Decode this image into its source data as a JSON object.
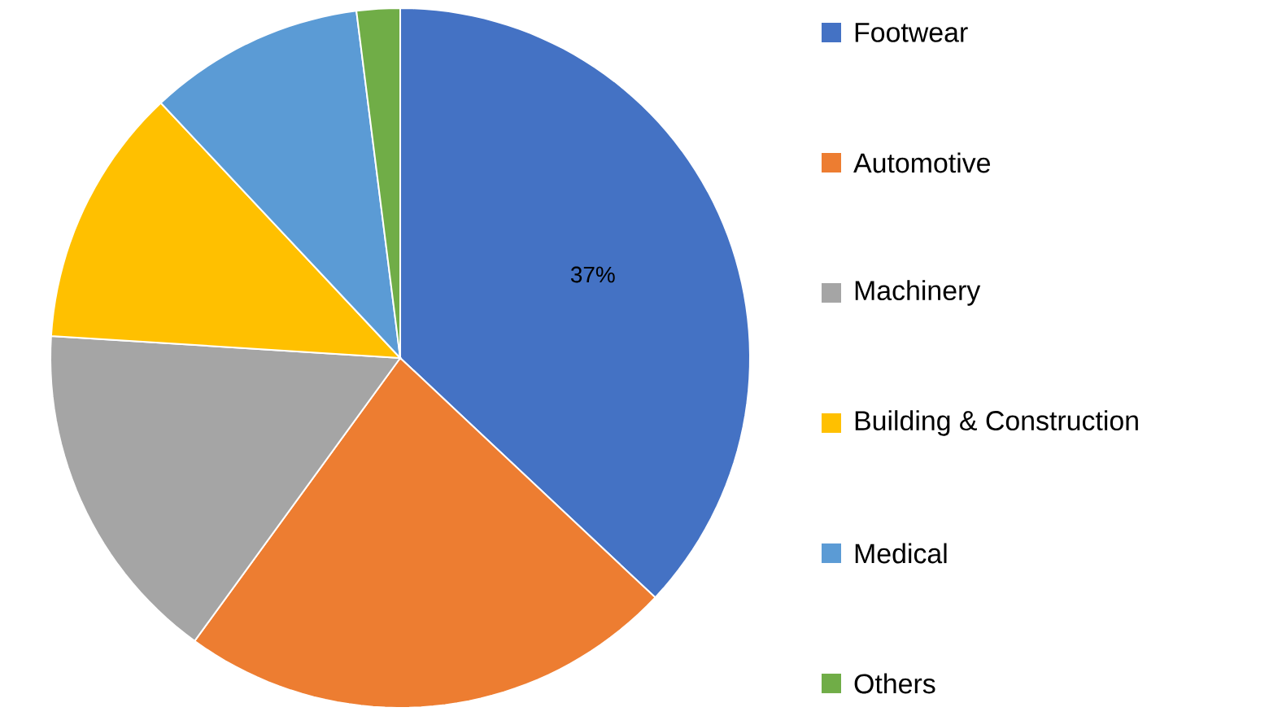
{
  "chart_data": {
    "type": "pie",
    "categories": [
      "Footwear",
      "Automotive",
      "Machinery",
      "Building & Construction",
      "Medical",
      "Others"
    ],
    "values": [
      37,
      23,
      16,
      12,
      10,
      2
    ],
    "colors": [
      "#4472c4",
      "#ed7d31",
      "#a5a5a5",
      "#ffc000",
      "#5b9bd5",
      "#70ad47"
    ],
    "value_labels": [
      "37%",
      null,
      null,
      null,
      null,
      null
    ],
    "legend": "right"
  }
}
